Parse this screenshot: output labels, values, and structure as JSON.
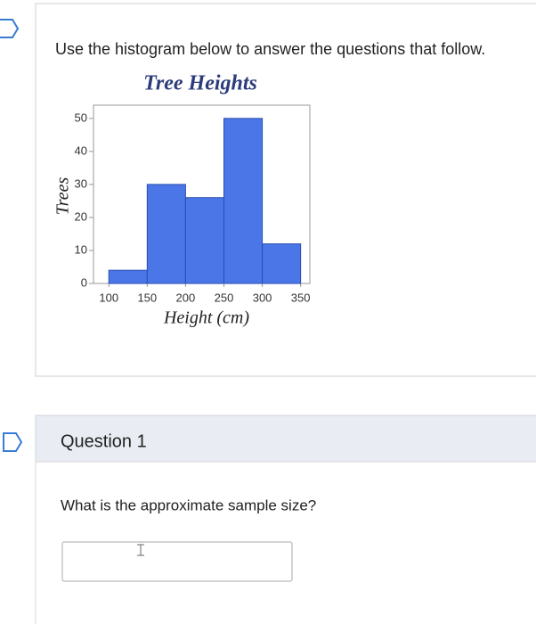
{
  "instruction": "Use the histogram below to answer the questions that follow.",
  "chart_data": {
    "type": "histogram",
    "title": "Tree Heights",
    "xlabel": "Height (cm)",
    "ylabel": "Trees",
    "bins": [
      100,
      150,
      200,
      250,
      300,
      350
    ],
    "values": [
      4,
      30,
      26,
      50,
      12
    ],
    "color": "#4a76e8",
    "xlim": [
      80,
      362
    ],
    "xticks": [
      100,
      150,
      200,
      250,
      300,
      350
    ],
    "ylim": [
      0,
      54
    ],
    "yticks": [
      0,
      10,
      20,
      30,
      40,
      50
    ],
    "grid": false
  },
  "question": {
    "title": "Question 1",
    "text": "What is the approximate sample size?"
  }
}
